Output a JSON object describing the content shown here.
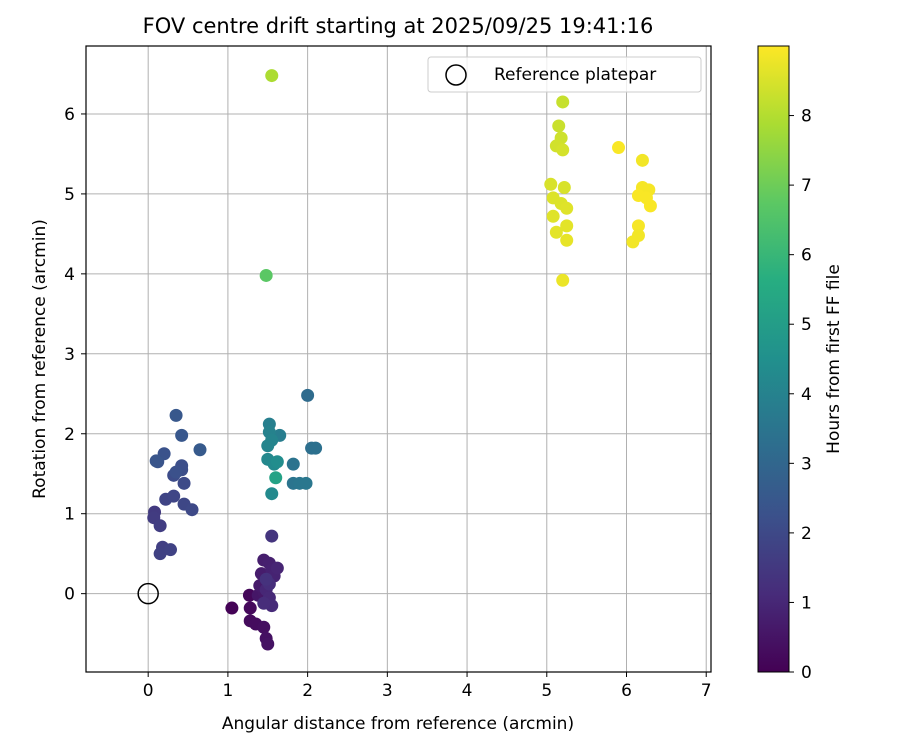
{
  "chart_data": {
    "type": "scatter",
    "title": "FOV centre drift starting at 2025/09/25 19:41:16",
    "xlabel": "Angular distance from reference (arcmin)",
    "ylabel": "Rotation from reference (arcmin)",
    "xlim": [
      -0.78,
      7.06
    ],
    "ylim": [
      -0.98,
      6.85
    ],
    "xticks": [
      0,
      1,
      2,
      3,
      4,
      5,
      6,
      7
    ],
    "yticks": [
      0,
      1,
      2,
      3,
      4,
      5,
      6
    ],
    "grid": true,
    "legend": {
      "location": "top-right",
      "entries": [
        {
          "label": "Reference platepar",
          "marker": "open-circle"
        }
      ]
    },
    "reference_point": {
      "x": 0,
      "y": 0,
      "label": "Reference platepar"
    },
    "colorbar": {
      "label": "Hours from first FF file",
      "colormap": "viridis",
      "range": [
        0,
        9
      ],
      "ticks": [
        0,
        1,
        2,
        3,
        4,
        5,
        6,
        7,
        8
      ]
    },
    "series": [
      {
        "name": "FOV centre",
        "points": [
          {
            "x": 1.05,
            "y": -0.18,
            "h": 0.05
          },
          {
            "x": 1.27,
            "y": -0.02,
            "h": 0.15
          },
          {
            "x": 1.28,
            "y": -0.18,
            "h": 0.2
          },
          {
            "x": 1.28,
            "y": -0.34,
            "h": 0.25
          },
          {
            "x": 1.35,
            "y": -0.38,
            "h": 0.3
          },
          {
            "x": 1.45,
            "y": -0.42,
            "h": 0.35
          },
          {
            "x": 1.48,
            "y": -0.56,
            "h": 0.4
          },
          {
            "x": 1.5,
            "y": -0.63,
            "h": 0.45
          },
          {
            "x": 1.38,
            "y": -0.02,
            "h": 0.55
          },
          {
            "x": 1.45,
            "y": 0.02,
            "h": 0.6
          },
          {
            "x": 1.4,
            "y": 0.1,
            "h": 0.65
          },
          {
            "x": 1.42,
            "y": 0.25,
            "h": 0.7
          },
          {
            "x": 1.45,
            "y": 0.42,
            "h": 0.75
          },
          {
            "x": 1.52,
            "y": 0.38,
            "h": 0.8
          },
          {
            "x": 1.55,
            "y": 0.3,
            "h": 0.85
          },
          {
            "x": 1.58,
            "y": 0.22,
            "h": 0.9
          },
          {
            "x": 1.62,
            "y": 0.32,
            "h": 0.95
          },
          {
            "x": 1.48,
            "y": 0.05,
            "h": 1.0
          },
          {
            "x": 1.52,
            "y": -0.05,
            "h": 1.05
          },
          {
            "x": 1.55,
            "y": -0.15,
            "h": 1.1
          },
          {
            "x": 1.45,
            "y": -0.12,
            "h": 1.15
          },
          {
            "x": 1.52,
            "y": 0.12,
            "h": 1.2
          },
          {
            "x": 1.55,
            "y": 0.72,
            "h": 1.4
          },
          {
            "x": 1.48,
            "y": 0.18,
            "h": 1.3
          },
          {
            "x": 0.08,
            "y": 1.02,
            "h": 1.55
          },
          {
            "x": 0.07,
            "y": 0.95,
            "h": 1.6
          },
          {
            "x": 0.15,
            "y": 0.85,
            "h": 1.65
          },
          {
            "x": 0.18,
            "y": 0.58,
            "h": 1.7
          },
          {
            "x": 0.15,
            "y": 0.5,
            "h": 1.75
          },
          {
            "x": 0.28,
            "y": 0.55,
            "h": 1.8
          },
          {
            "x": 0.22,
            "y": 1.18,
            "h": 1.85
          },
          {
            "x": 0.32,
            "y": 1.22,
            "h": 1.9
          },
          {
            "x": 0.45,
            "y": 1.12,
            "h": 1.95
          },
          {
            "x": 0.55,
            "y": 1.05,
            "h": 2.0
          },
          {
            "x": 0.45,
            "y": 1.38,
            "h": 2.05
          },
          {
            "x": 0.32,
            "y": 1.48,
            "h": 2.1
          },
          {
            "x": 0.42,
            "y": 1.55,
            "h": 2.15
          },
          {
            "x": 0.42,
            "y": 1.6,
            "h": 2.2
          },
          {
            "x": 0.35,
            "y": 1.52,
            "h": 2.25
          },
          {
            "x": 0.2,
            "y": 1.75,
            "h": 2.3
          },
          {
            "x": 0.12,
            "y": 1.65,
            "h": 2.35
          },
          {
            "x": 0.1,
            "y": 1.66,
            "h": 2.4
          },
          {
            "x": 0.42,
            "y": 1.98,
            "h": 2.45
          },
          {
            "x": 0.35,
            "y": 2.23,
            "h": 2.5
          },
          {
            "x": 0.65,
            "y": 1.8,
            "h": 2.55
          },
          {
            "x": 2.0,
            "y": 2.48,
            "h": 3.15
          },
          {
            "x": 2.05,
            "y": 1.82,
            "h": 3.3
          },
          {
            "x": 2.1,
            "y": 1.82,
            "h": 3.35
          },
          {
            "x": 1.82,
            "y": 1.62,
            "h": 3.45
          },
          {
            "x": 1.82,
            "y": 1.38,
            "h": 3.5
          },
          {
            "x": 1.9,
            "y": 1.38,
            "h": 3.55
          },
          {
            "x": 1.98,
            "y": 1.38,
            "h": 3.6
          },
          {
            "x": 1.65,
            "y": 1.98,
            "h": 3.8
          },
          {
            "x": 1.52,
            "y": 2.12,
            "h": 3.9
          },
          {
            "x": 1.52,
            "y": 2.02,
            "h": 4.0
          },
          {
            "x": 1.55,
            "y": 1.92,
            "h": 4.05
          },
          {
            "x": 1.5,
            "y": 1.85,
            "h": 4.1
          },
          {
            "x": 1.5,
            "y": 1.68,
            "h": 4.2
          },
          {
            "x": 1.58,
            "y": 1.62,
            "h": 4.3
          },
          {
            "x": 1.62,
            "y": 1.65,
            "h": 4.4
          },
          {
            "x": 1.55,
            "y": 1.25,
            "h": 4.3
          },
          {
            "x": 1.6,
            "y": 1.45,
            "h": 5.2
          },
          {
            "x": 1.48,
            "y": 3.98,
            "h": 6.7
          },
          {
            "x": 1.55,
            "y": 6.48,
            "h": 7.9
          },
          {
            "x": 5.2,
            "y": 6.15,
            "h": 8.25
          },
          {
            "x": 5.15,
            "y": 5.85,
            "h": 8.3
          },
          {
            "x": 5.18,
            "y": 5.7,
            "h": 8.35
          },
          {
            "x": 5.12,
            "y": 5.6,
            "h": 8.4
          },
          {
            "x": 5.2,
            "y": 5.55,
            "h": 8.45
          },
          {
            "x": 5.05,
            "y": 5.12,
            "h": 8.5
          },
          {
            "x": 5.22,
            "y": 5.08,
            "h": 8.5
          },
          {
            "x": 5.08,
            "y": 4.95,
            "h": 8.55
          },
          {
            "x": 5.18,
            "y": 4.88,
            "h": 8.55
          },
          {
            "x": 5.25,
            "y": 4.82,
            "h": 8.6
          },
          {
            "x": 5.08,
            "y": 4.72,
            "h": 8.6
          },
          {
            "x": 5.25,
            "y": 4.6,
            "h": 8.65
          },
          {
            "x": 5.12,
            "y": 4.52,
            "h": 8.65
          },
          {
            "x": 5.25,
            "y": 4.42,
            "h": 8.7
          },
          {
            "x": 5.2,
            "y": 3.92,
            "h": 8.75
          },
          {
            "x": 5.9,
            "y": 5.58,
            "h": 8.95
          },
          {
            "x": 6.2,
            "y": 5.42,
            "h": 8.85
          },
          {
            "x": 6.2,
            "y": 5.08,
            "h": 8.9
          },
          {
            "x": 6.28,
            "y": 5.05,
            "h": 8.9
          },
          {
            "x": 6.15,
            "y": 4.98,
            "h": 8.95
          },
          {
            "x": 6.25,
            "y": 4.95,
            "h": 8.95
          },
          {
            "x": 6.3,
            "y": 4.85,
            "h": 8.95
          },
          {
            "x": 6.15,
            "y": 4.6,
            "h": 8.9
          },
          {
            "x": 6.15,
            "y": 4.48,
            "h": 8.85
          },
          {
            "x": 6.08,
            "y": 4.4,
            "h": 8.85
          }
        ]
      }
    ]
  }
}
